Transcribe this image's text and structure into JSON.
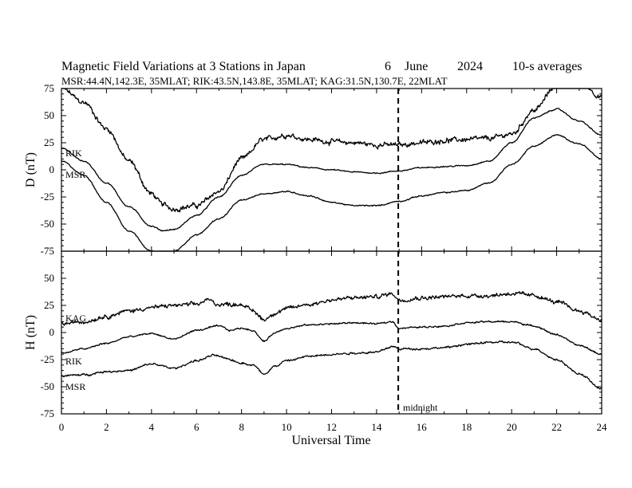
{
  "header": {
    "title": "Magnetic Field Variations at 3 Stations in Japan",
    "date_day": "6",
    "date_month": "June",
    "date_year": "2024",
    "averaging": "10-s averages",
    "stations": "MSR:44.4N,142.3E, 35MLAT;  RIK:43.5N,143.8E, 35MLAT;  KAG:31.5N,130.7E, 22MLAT"
  },
  "xaxis": {
    "label": "Universal Time",
    "ticks": [
      "0",
      "2",
      "4",
      "6",
      "8",
      "10",
      "12",
      "14",
      "16",
      "18",
      "20",
      "22",
      "24"
    ]
  },
  "top_panel": {
    "ylabel": "D (nT)",
    "ticks": [
      "75",
      "50",
      "25",
      "0",
      "-25",
      "-50",
      "-75"
    ],
    "labels": {
      "rik": "RIK",
      "msr": "MSR"
    }
  },
  "bottom_panel": {
    "ylabel": "H (nT)",
    "ticks": [
      "50",
      "25",
      "0",
      "-25",
      "-50",
      "-75"
    ],
    "labels": {
      "kag": "KAG",
      "rik": "RIK",
      "msr": "MSR"
    }
  },
  "midnight_label": "midnight",
  "colors": {
    "line": "#000000",
    "background": "#ffffff"
  },
  "chart_data": [
    {
      "type": "line",
      "panel": "top",
      "title": "Magnetic Field Variations at 3 Stations in Japan",
      "xlabel": "Universal Time",
      "ylabel": "D (nT)",
      "xlim": [
        0,
        24
      ],
      "ylim": [
        -75,
        75
      ],
      "grid": false,
      "annotations": [
        {
          "x": 15,
          "style": "dashed-vertical"
        }
      ],
      "series": [
        {
          "name": "",
          "noise": 2.5,
          "x": [
            0,
            1,
            2,
            3,
            4,
            4.5,
            5,
            6,
            7,
            8,
            9,
            10,
            11,
            12,
            13,
            14,
            15,
            16,
            17,
            18,
            19,
            20,
            21,
            22,
            23,
            24
          ],
          "y": [
            75,
            62,
            38,
            8,
            -22,
            -32,
            -36,
            -33,
            -20,
            10,
            28,
            32,
            28,
            26,
            25,
            23,
            23,
            25,
            27,
            28,
            29,
            33,
            55,
            78,
            82,
            67
          ]
        },
        {
          "name": "RIK",
          "noise": 0.6,
          "x": [
            0,
            1,
            2,
            3,
            4,
            4.5,
            5,
            6,
            7,
            8,
            9,
            10,
            11,
            12,
            13,
            14,
            15,
            16,
            17,
            18,
            19,
            20,
            21,
            22,
            23,
            24
          ],
          "y": [
            20,
            8,
            -12,
            -34,
            -52,
            -56,
            -55,
            -42,
            -25,
            -5,
            5,
            5,
            2,
            0,
            -2,
            -3,
            -1,
            2,
            3,
            4,
            8,
            25,
            48,
            56,
            45,
            32
          ]
        },
        {
          "name": "MSR",
          "noise": 0.6,
          "x": [
            0,
            1,
            2,
            3,
            4,
            4.5,
            5,
            6,
            7,
            8,
            9,
            10,
            11,
            12,
            13,
            14,
            15,
            16,
            17,
            18,
            19,
            20,
            21,
            22,
            23,
            24
          ],
          "y": [
            8,
            -5,
            -30,
            -56,
            -75,
            -79,
            -75,
            -60,
            -45,
            -28,
            -22,
            -20,
            -24,
            -30,
            -33,
            -33,
            -29,
            -24,
            -21,
            -19,
            -12,
            5,
            22,
            32,
            24,
            10
          ]
        }
      ]
    },
    {
      "type": "line",
      "panel": "bottom",
      "xlabel": "Universal Time",
      "ylabel": "H (nT)",
      "xlim": [
        0,
        24
      ],
      "ylim": [
        -75,
        75
      ],
      "grid": false,
      "annotations": [
        {
          "x": 15,
          "style": "dashed-vertical",
          "label": "midnight"
        }
      ],
      "series": [
        {
          "name": "KAG",
          "noise": 2.0,
          "x": [
            0,
            1,
            2,
            3,
            4,
            5,
            6,
            6.5,
            7,
            8,
            8.5,
            9,
            9.5,
            10,
            11,
            12,
            13,
            14,
            14.7,
            15,
            16,
            17,
            18,
            19,
            20,
            21,
            22,
            23,
            24
          ],
          "y": [
            8,
            10,
            15,
            20,
            23,
            25,
            26,
            30,
            26,
            26,
            20,
            12,
            18,
            22,
            26,
            30,
            32,
            33,
            36,
            30,
            32,
            33,
            34,
            34,
            36,
            34,
            28,
            20,
            12
          ]
        },
        {
          "name": "RIK",
          "noise": 0.8,
          "x": [
            0,
            1,
            2,
            3,
            4,
            5,
            6,
            7,
            7.5,
            8,
            8.5,
            9,
            9.5,
            10,
            11,
            12,
            13,
            14,
            14.7,
            15,
            16,
            17,
            18,
            19,
            20,
            21,
            22,
            23,
            24
          ],
          "y": [
            -19,
            -15,
            -10,
            -4,
            -1,
            -6,
            2,
            6,
            2,
            4,
            2,
            -8,
            0,
            4,
            7,
            8,
            9,
            8,
            10,
            4,
            5,
            6,
            9,
            10,
            10,
            6,
            -2,
            -12,
            -20
          ]
        },
        {
          "name": "MSR",
          "noise": 1.0,
          "x": [
            0,
            1,
            2,
            3,
            4,
            5,
            6,
            6.8,
            7.3,
            8,
            8.5,
            9,
            9.5,
            10,
            11,
            12,
            13,
            14,
            14.7,
            15,
            16,
            17,
            18,
            19,
            20,
            21,
            22,
            23,
            24
          ],
          "y": [
            -40,
            -39,
            -36,
            -35,
            -29,
            -33,
            -26,
            -21,
            -24,
            -28,
            -30,
            -38,
            -31,
            -26,
            -22,
            -20,
            -19,
            -18,
            -13,
            -15,
            -15,
            -14,
            -11,
            -9,
            -9,
            -15,
            -25,
            -38,
            -52
          ]
        }
      ]
    }
  ]
}
